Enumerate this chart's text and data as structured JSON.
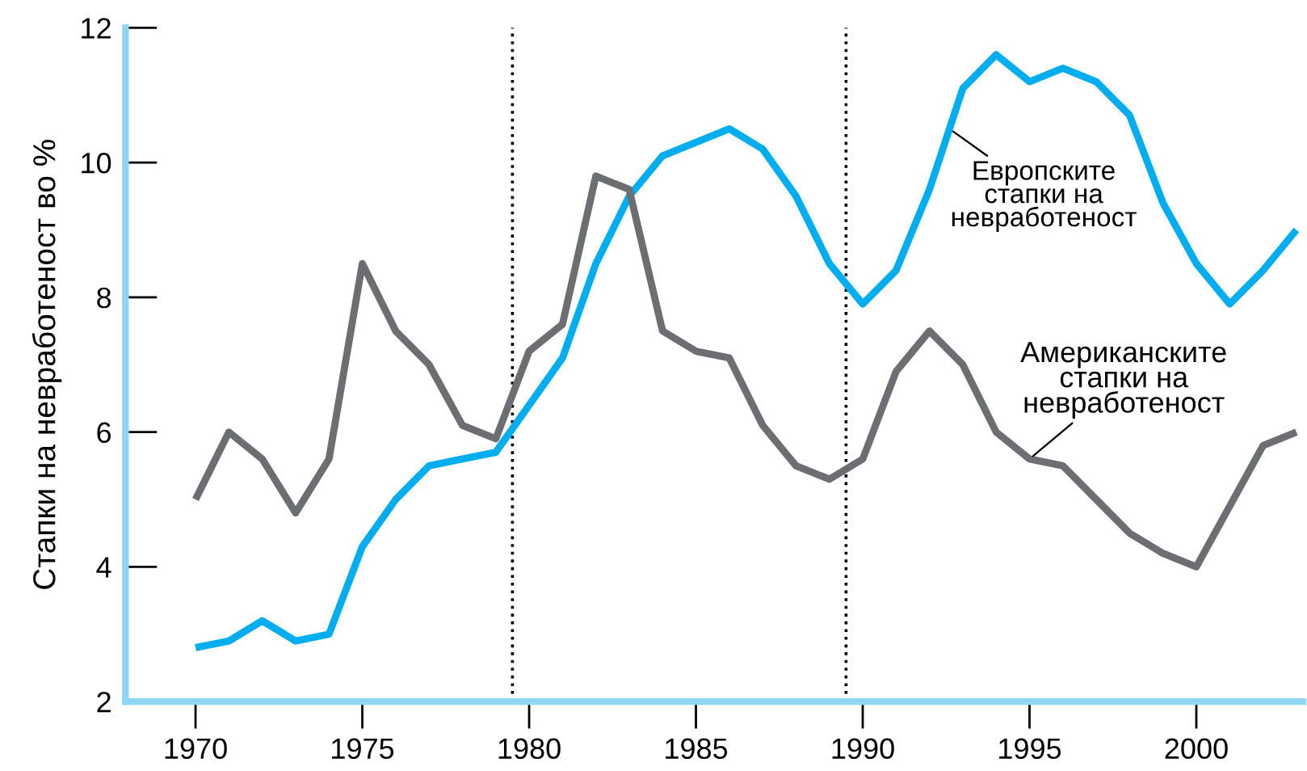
{
  "chart_data": {
    "type": "line",
    "ylabel": "Стапки на невработеност во %",
    "x": [
      1970,
      1971,
      1972,
      1973,
      1974,
      1975,
      1976,
      1977,
      1978,
      1979,
      1980,
      1981,
      1982,
      1983,
      1984,
      1985,
      1986,
      1987,
      1988,
      1989,
      1990,
      1991,
      1992,
      1993,
      1994,
      1995,
      1996,
      1997,
      1998,
      1999,
      2000,
      2001,
      2002,
      2003
    ],
    "series": [
      {
        "name": "Европските\nстапки на\nневработеност",
        "color": "#00aeef",
        "values": [
          2.8,
          2.9,
          3.2,
          2.9,
          3.0,
          4.3,
          5.0,
          5.5,
          5.6,
          5.7,
          6.4,
          7.1,
          8.5,
          9.5,
          10.1,
          10.3,
          10.5,
          10.2,
          9.5,
          8.5,
          7.9,
          8.4,
          9.6,
          11.1,
          11.6,
          11.2,
          11.4,
          11.2,
          10.7,
          9.4,
          8.5,
          7.9,
          8.4,
          9.0
        ]
      },
      {
        "name": "Американските\nстапки на\nневработеност",
        "color": "#6d6e71",
        "values": [
          5.0,
          6.0,
          5.6,
          4.8,
          5.6,
          8.5,
          7.5,
          7.0,
          6.1,
          5.9,
          7.2,
          7.6,
          9.8,
          9.6,
          7.5,
          7.2,
          7.1,
          6.1,
          5.5,
          5.3,
          5.6,
          6.9,
          7.5,
          7.0,
          6.0,
          5.6,
          5.5,
          5.0,
          4.5,
          4.2,
          4.0,
          4.9,
          5.8,
          6.0
        ]
      }
    ],
    "xlim": [
      1967.9,
      2003.2
    ],
    "xticks": [
      1970,
      1975,
      1980,
      1985,
      1990,
      1995,
      2000
    ],
    "ylim": [
      2,
      12
    ],
    "yticks": [
      2,
      4,
      6,
      8,
      10,
      12
    ],
    "ref_lines": [
      {
        "axis": "x",
        "value": 1979.5,
        "color": "#000000",
        "line_style": "dotted"
      },
      {
        "axis": "x",
        "value": 1989.5,
        "color": "#000000",
        "line_style": "dotted"
      }
    ],
    "grid": false,
    "legend": false,
    "marker": "none",
    "line_style": "solid"
  }
}
